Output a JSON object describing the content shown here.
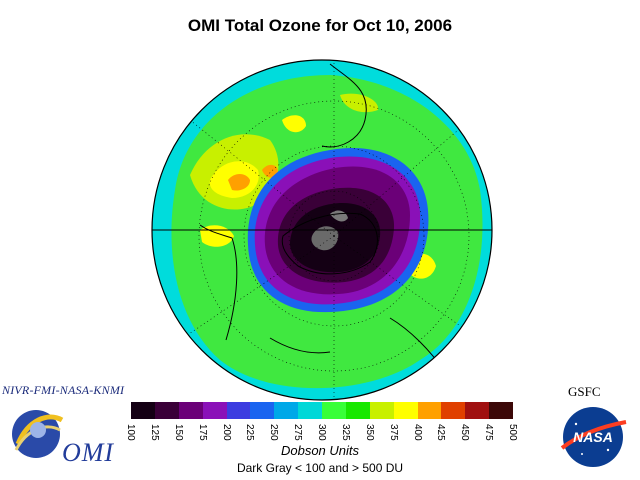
{
  "title": "OMI Total Ozone for Oct 10, 2006",
  "credits_left": "NIVR-FMI-NASA-KNMI",
  "credits_right": "GSFC",
  "omi_logo_text": "OMI",
  "nasa_logo_text": "NASA",
  "units": "Dobson Units",
  "note": "Dark Gray < 100 and > 500 DU",
  "colorbar": {
    "colors": [
      "#140014",
      "#3a0038",
      "#6b0078",
      "#8a10b8",
      "#3c3ce0",
      "#1a64f0",
      "#00a8e8",
      "#00d8d8",
      "#38ff38",
      "#18e800",
      "#c8f000",
      "#ffff00",
      "#ffa000",
      "#e04000",
      "#a01010",
      "#3c0808"
    ],
    "tick_labels": [
      "100",
      "125",
      "150",
      "175",
      "200",
      "225",
      "250",
      "275",
      "300",
      "325",
      "350",
      "375",
      "400",
      "425",
      "450",
      "475",
      "500"
    ]
  }
}
